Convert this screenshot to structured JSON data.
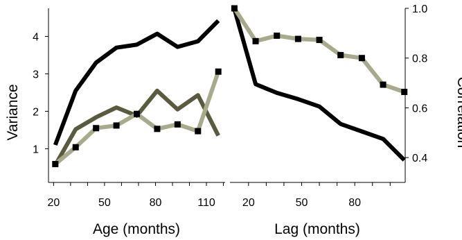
{
  "chart_data": [
    {
      "type": "line",
      "xlabel": "Age (months)",
      "ylabel": "Variance",
      "xlim": [
        17,
        121
      ],
      "ylim": [
        0.1,
        4.75
      ],
      "xticks": [
        20,
        30,
        40,
        50,
        60,
        70,
        80,
        90,
        100,
        110,
        120
      ],
      "xtick_labels": [
        "20",
        "",
        "",
        "50",
        "",
        "",
        "80",
        "",
        "",
        "110",
        ""
      ],
      "yticks": [
        1,
        2,
        3,
        4
      ],
      "ytick_labels": [
        "1",
        "2",
        "3",
        "4"
      ],
      "grid": false,
      "series": [
        {
          "color": "#000000",
          "marker": "none",
          "x": [
            21,
            33,
            45,
            57,
            69,
            81,
            93,
            105,
            117
          ],
          "y": [
            1.1,
            2.55,
            3.3,
            3.7,
            3.78,
            4.07,
            3.72,
            3.87,
            4.42
          ]
        },
        {
          "color": "#5a5a3e",
          "marker": "none",
          "x": [
            21,
            33,
            45,
            57,
            69,
            81,
            93,
            105,
            117
          ],
          "y": [
            0.56,
            1.52,
            1.84,
            2.1,
            1.88,
            2.55,
            2.05,
            2.43,
            1.35
          ]
        },
        {
          "color": "#a9aa8b",
          "marker": "square",
          "x": [
            21,
            33,
            45,
            57,
            69,
            81,
            93,
            105,
            117
          ],
          "y": [
            0.59,
            1.04,
            1.55,
            1.62,
            1.93,
            1.53,
            1.65,
            1.47,
            3.06
          ]
        }
      ]
    },
    {
      "type": "line",
      "xlabel": "Lag (months)",
      "ylabel": "Correlation",
      "xlim": [
        9.5,
        108.5
      ],
      "ylim": [
        0.3,
        1.0
      ],
      "xticks": [
        20,
        30,
        40,
        50,
        60,
        70,
        80,
        90,
        100
      ],
      "xtick_labels": [
        "20",
        "",
        "",
        "50",
        "",
        "",
        "80",
        "",
        ""
      ],
      "yticks": [
        0.4,
        0.6,
        0.8,
        1.0
      ],
      "ytick_labels": [
        "0.4",
        "0.6",
        "0.8",
        "1.0"
      ],
      "grid": false,
      "series": [
        {
          "color": "#000000",
          "marker": "none",
          "x": [
            12,
            24,
            36,
            48,
            60,
            72,
            84,
            96,
            108
          ],
          "y": [
            0.997,
            0.695,
            0.66,
            0.635,
            0.605,
            0.535,
            0.505,
            0.475,
            0.39
          ]
        },
        {
          "color": "#a9aa8b",
          "marker": "square",
          "x": [
            12,
            24,
            36,
            48,
            60,
            72,
            84,
            96,
            108
          ],
          "y": [
            1.0,
            0.868,
            0.89,
            0.877,
            0.873,
            0.812,
            0.8,
            0.693,
            0.664
          ]
        }
      ]
    }
  ]
}
